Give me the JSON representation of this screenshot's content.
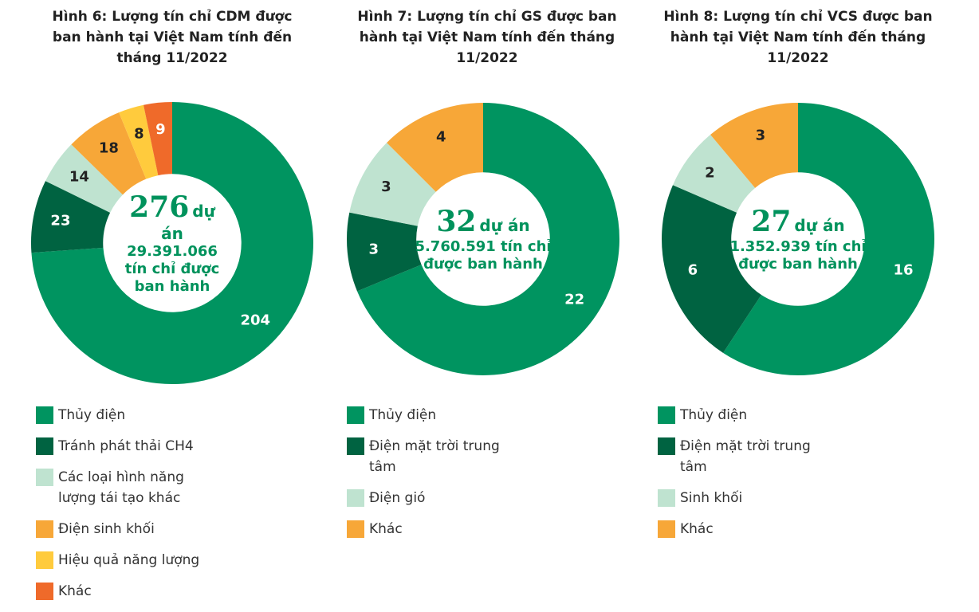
{
  "chart_data": [
    {
      "type": "donut",
      "title": "Hình 6: Lượng tín chỉ CDM được ban hành tại Việt Nam tính đến tháng 11/2022",
      "categories": [
        "Thủy điện",
        "Tránh phát thải CH4",
        "Các loại hình năng lượng tái tạo khác",
        "Điện sinh khối",
        "Hiệu quả năng lượng",
        "Khác"
      ],
      "values": [
        204,
        23,
        14,
        18,
        8,
        9
      ],
      "colors": [
        "#009460",
        "#006341",
        "#bfe3d0",
        "#f7a738",
        "#ffcb3d",
        "#ef6a2a"
      ],
      "center_value": 276,
      "center_unit": "dự án",
      "center_caption": "29.391.066 tín chỉ được ban hành"
    },
    {
      "type": "donut",
      "title": "Hình 7: Lượng tín chỉ GS được ban hành tại Việt Nam tính đến tháng 11/2022",
      "categories": [
        "Thủy điện",
        "Điện mặt trời trung tâm",
        "Điện gió",
        "Khác"
      ],
      "values": [
        22,
        3,
        3,
        4
      ],
      "colors": [
        "#009460",
        "#006341",
        "#bfe3d0",
        "#f7a738"
      ],
      "center_value": 32,
      "center_unit": "dự án",
      "center_caption": "5.760.591 tín chỉ được ban hành"
    },
    {
      "type": "donut",
      "title": "Hình 8: Lượng tín chỉ VCS được ban hành tại Việt Nam tính đến tháng 11/2022",
      "categories": [
        "Thủy điện",
        "Điện mặt trời trung tâm",
        "Sinh khối",
        "Khác"
      ],
      "values": [
        16,
        6,
        2,
        3
      ],
      "colors": [
        "#009460",
        "#006341",
        "#bfe3d0",
        "#f7a738"
      ],
      "center_value": 27,
      "center_unit": "dự án",
      "center_caption": "1.352.939 tín chỉ được ban hành"
    }
  ]
}
